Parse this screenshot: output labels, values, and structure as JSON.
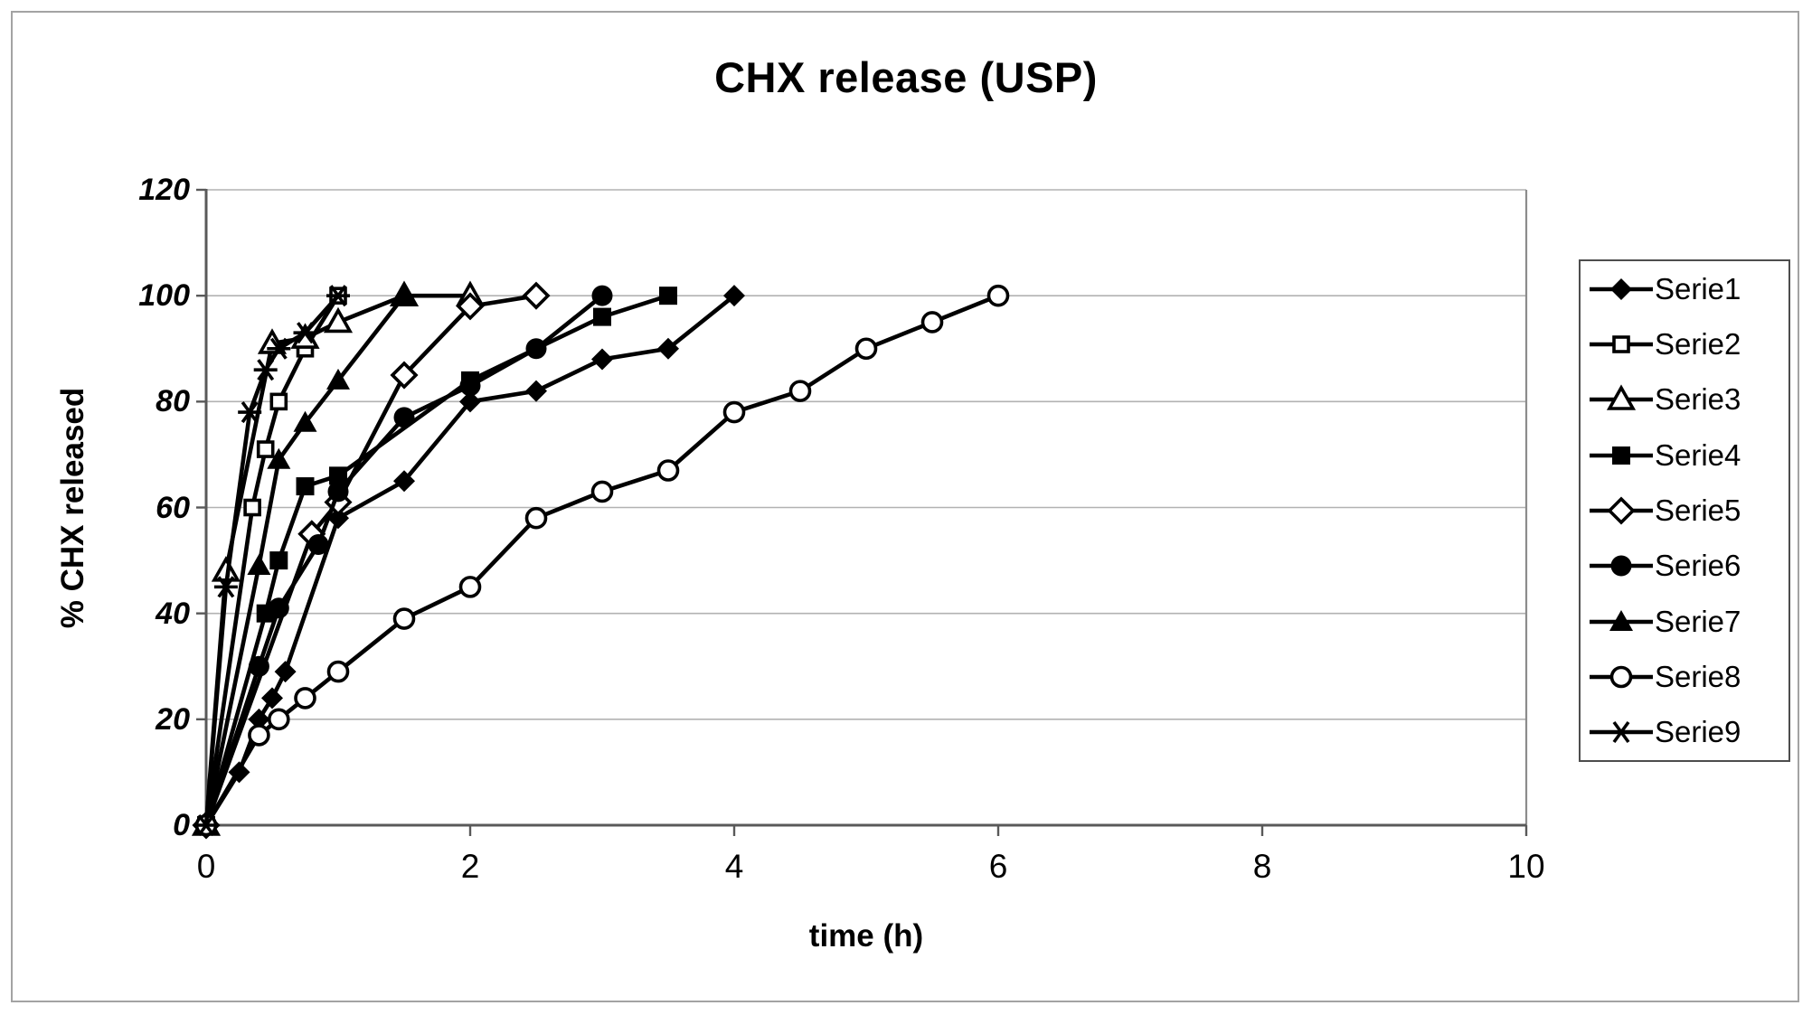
{
  "frame": {
    "title": "CHX release (USP)"
  },
  "axes": {
    "x_title": "time (h)",
    "y_title": "% CHX released",
    "x_ticks": [
      "0",
      "2",
      "4",
      "6",
      "8",
      "10"
    ],
    "y_ticks": [
      "0",
      "20",
      "40",
      "60",
      "80",
      "100",
      "120"
    ]
  },
  "legend": {
    "position": "right",
    "labels": [
      "Serie1",
      "Serie2",
      "Serie3",
      "Serie4",
      "Serie5",
      "Serie6",
      "Serie7",
      "Serie8",
      "Serie9"
    ]
  },
  "colors": {
    "series": "#000000",
    "grid": "#b2b2b2",
    "axis": "#595959",
    "plot_border": "#8c8c8c",
    "background": "#ffffff"
  },
  "chart_data": {
    "type": "line",
    "title": "CHX release (USP)",
    "xlabel": "time (h)",
    "ylabel": "% CHX released",
    "xlim": [
      0,
      10
    ],
    "ylim": [
      0,
      120
    ],
    "x_tick_values": [
      0,
      2,
      4,
      6,
      8,
      10
    ],
    "y_tick_values": [
      0,
      20,
      40,
      60,
      80,
      100,
      120
    ],
    "grid": "horizontal",
    "legend_position": "right",
    "line_color": "#000000",
    "series": [
      {
        "name": "Serie1",
        "marker": "diamond-filled",
        "points": [
          [
            0,
            0
          ],
          [
            0.25,
            10
          ],
          [
            0.4,
            20
          ],
          [
            0.5,
            24
          ],
          [
            0.6,
            29
          ],
          [
            1,
            58
          ],
          [
            1.5,
            65
          ],
          [
            2,
            80
          ],
          [
            2.5,
            82
          ],
          [
            3,
            88
          ],
          [
            3.5,
            90
          ],
          [
            4,
            100
          ]
        ]
      },
      {
        "name": "Serie2",
        "marker": "square-open",
        "points": [
          [
            0,
            0
          ],
          [
            0.35,
            60
          ],
          [
            0.45,
            71
          ],
          [
            0.55,
            80
          ],
          [
            0.75,
            90
          ],
          [
            1,
            100
          ]
        ]
      },
      {
        "name": "Serie3",
        "marker": "triangle-open",
        "points": [
          [
            0,
            0
          ],
          [
            0.15,
            48
          ],
          [
            0.5,
            91
          ],
          [
            0.75,
            92
          ],
          [
            1,
            95
          ],
          [
            1.5,
            100
          ],
          [
            2,
            100
          ]
        ]
      },
      {
        "name": "Serie4",
        "marker": "square-filled",
        "points": [
          [
            0,
            0
          ],
          [
            0.45,
            40
          ],
          [
            0.55,
            50
          ],
          [
            0.75,
            64
          ],
          [
            1,
            66
          ],
          [
            2,
            84
          ],
          [
            3,
            96
          ],
          [
            3.5,
            100
          ]
        ]
      },
      {
        "name": "Serie5",
        "marker": "diamond-open",
        "points": [
          [
            0,
            0
          ],
          [
            0.8,
            55
          ],
          [
            1,
            61
          ],
          [
            1.5,
            85
          ],
          [
            2,
            98
          ],
          [
            2.5,
            100
          ]
        ]
      },
      {
        "name": "Serie6",
        "marker": "circle-filled",
        "points": [
          [
            0,
            0
          ],
          [
            0.4,
            30
          ],
          [
            0.55,
            41
          ],
          [
            0.85,
            53
          ],
          [
            1,
            63
          ],
          [
            1.5,
            77
          ],
          [
            2,
            83
          ],
          [
            2.5,
            90
          ],
          [
            3,
            100
          ]
        ]
      },
      {
        "name": "Serie7",
        "marker": "triangle-filled",
        "points": [
          [
            0,
            0
          ],
          [
            0.4,
            49
          ],
          [
            0.55,
            69
          ],
          [
            0.75,
            76
          ],
          [
            1,
            84
          ],
          [
            1.5,
            100
          ]
        ]
      },
      {
        "name": "Serie8",
        "marker": "circle-open",
        "points": [
          [
            0,
            0
          ],
          [
            0.4,
            17
          ],
          [
            0.55,
            20
          ],
          [
            0.75,
            24
          ],
          [
            1,
            29
          ],
          [
            1.5,
            39
          ],
          [
            2,
            45
          ],
          [
            2.5,
            58
          ],
          [
            3,
            63
          ],
          [
            3.5,
            67
          ],
          [
            4,
            78
          ],
          [
            4.5,
            82
          ],
          [
            5,
            90
          ],
          [
            5.5,
            95
          ],
          [
            6,
            100
          ]
        ]
      },
      {
        "name": "Serie9",
        "marker": "asterisk",
        "points": [
          [
            0,
            0
          ],
          [
            0.15,
            45
          ],
          [
            0.33,
            78
          ],
          [
            0.45,
            86
          ],
          [
            0.55,
            90
          ],
          [
            0.75,
            93
          ],
          [
            1,
            100
          ]
        ]
      }
    ]
  }
}
